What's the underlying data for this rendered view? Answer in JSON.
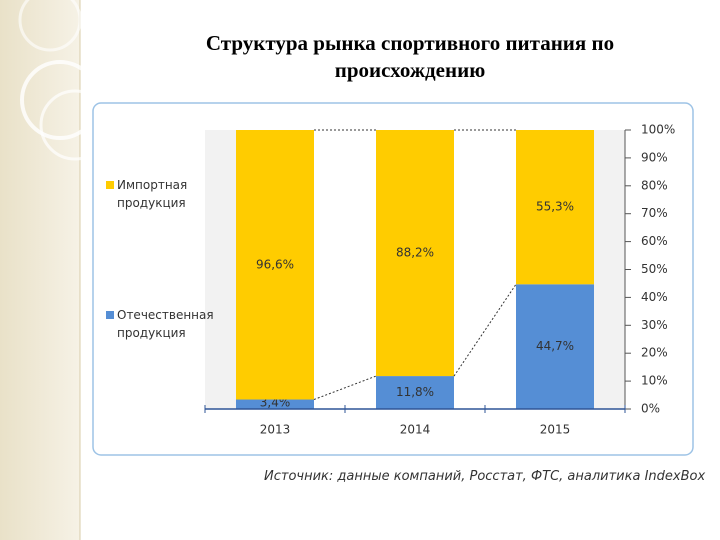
{
  "chart_data": {
    "type": "stacked-bar",
    "title": "Структура рынка спортивного питания по происхождению",
    "source": "Источник: данные компаний, Росстат, ФТС, аналитика IndexBox",
    "categories": [
      "2013",
      "2014",
      "2015"
    ],
    "series": [
      {
        "name": "Отечественная продукция",
        "color": "#558ed5",
        "values": [
          3.4,
          11.8,
          44.7
        ],
        "value_labels": [
          "3,4%",
          "11,8%",
          "44,7%"
        ]
      },
      {
        "name": "Импортная продукция",
        "color": "#ffcc00",
        "values": [
          96.6,
          88.2,
          55.3
        ],
        "value_labels": [
          "96,6%",
          "88,2%",
          "55,3%"
        ]
      }
    ],
    "ylim": [
      0,
      100
    ],
    "yticks": [
      {
        "value": 0,
        "label": "0%"
      },
      {
        "value": 10,
        "label": "10%"
      },
      {
        "value": 20,
        "label": "20%"
      },
      {
        "value": 30,
        "label": "30%"
      },
      {
        "value": 40,
        "label": "40%"
      },
      {
        "value": 50,
        "label": "50%"
      },
      {
        "value": 60,
        "label": "60%"
      },
      {
        "value": 70,
        "label": "70%"
      },
      {
        "value": 80,
        "label": "80%"
      },
      {
        "value": 90,
        "label": "90%"
      },
      {
        "value": 100,
        "label": "100%"
      }
    ],
    "axis_side": "right"
  }
}
